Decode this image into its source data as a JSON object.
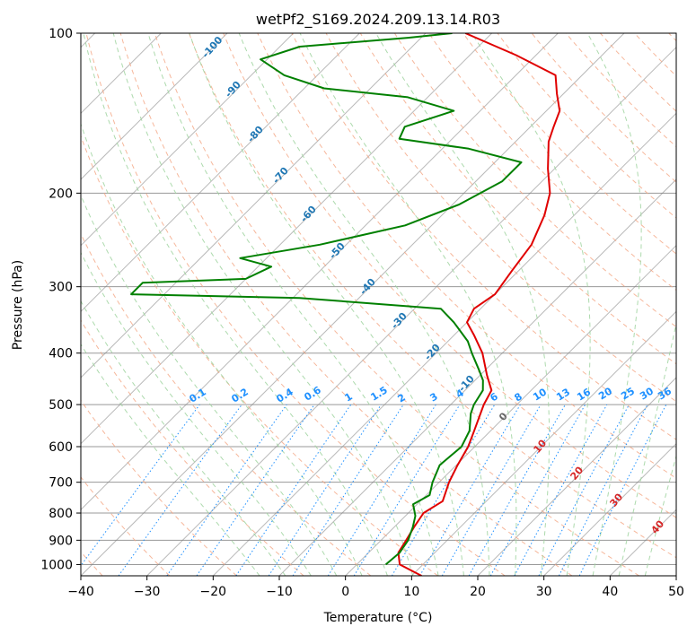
{
  "chart_data": {
    "type": "line",
    "title": "wetPf2_S169.2024.209.13.14.R03",
    "xlabel": "Temperature (°C)",
    "ylabel": "Pressure (hPa)",
    "xlim": [
      -40,
      50
    ],
    "ylim": [
      1050,
      100
    ],
    "y_scale": "log",
    "skew": true,
    "grid": true,
    "x_ticks": [
      -40,
      -30,
      -20,
      -10,
      0,
      10,
      20,
      30,
      40,
      50
    ],
    "y_ticks": [
      100,
      200,
      300,
      400,
      500,
      600,
      700,
      800,
      900,
      1000
    ],
    "series": [
      {
        "color": "#e00000",
        "points": [
          [
            1050,
            11.5
          ],
          [
            1000,
            6.5
          ],
          [
            950,
            4.5
          ],
          [
            900,
            3.8
          ],
          [
            850,
            3.0
          ],
          [
            800,
            2.3
          ],
          [
            760,
            3.4
          ],
          [
            700,
            1.5
          ],
          [
            650,
            0.2
          ],
          [
            600,
            -1.0
          ],
          [
            560,
            -2.5
          ],
          [
            500,
            -5.0
          ],
          [
            470,
            -6.0
          ],
          [
            440,
            -9.0
          ],
          [
            400,
            -13.0
          ],
          [
            370,
            -17.0
          ],
          [
            350,
            -20.0
          ],
          [
            330,
            -21.0
          ],
          [
            310,
            -20.0
          ],
          [
            280,
            -21.0
          ],
          [
            250,
            -22.0
          ],
          [
            220,
            -24.5
          ],
          [
            200,
            -27.0
          ],
          [
            180,
            -31.0
          ],
          [
            160,
            -35.0
          ],
          [
            150,
            -36.5
          ],
          [
            140,
            -38.0
          ],
          [
            130,
            -41.0
          ],
          [
            120,
            -44.0
          ],
          [
            110,
            -53.0
          ],
          [
            100,
            -64.0
          ]
        ]
      },
      {
        "color": "#008000",
        "points": [
          [
            1000,
            4.4
          ],
          [
            950,
            4.7
          ],
          [
            900,
            4.1
          ],
          [
            850,
            2.8
          ],
          [
            810,
            1.5
          ],
          [
            770,
            -0.6
          ],
          [
            740,
            0.5
          ],
          [
            700,
            -1.0
          ],
          [
            650,
            -2.5
          ],
          [
            600,
            -2.0
          ],
          [
            560,
            -3.2
          ],
          [
            520,
            -5.6
          ],
          [
            500,
            -6.5
          ],
          [
            470,
            -7.3
          ],
          [
            450,
            -8.8
          ],
          [
            430,
            -11.0
          ],
          [
            400,
            -14.6
          ],
          [
            380,
            -17.0
          ],
          [
            350,
            -22.0
          ],
          [
            330,
            -26.0
          ],
          [
            315,
            -49.0
          ],
          [
            310,
            -75.0
          ],
          [
            295,
            -75.0
          ],
          [
            290,
            -60.0
          ],
          [
            275,
            -58.0
          ],
          [
            265,
            -64.0
          ],
          [
            250,
            -54.0
          ],
          [
            230,
            -44.0
          ],
          [
            210,
            -39.0
          ],
          [
            190,
            -36.0
          ],
          [
            175,
            -36.0
          ],
          [
            165,
            -46.0
          ],
          [
            158,
            -58.0
          ],
          [
            150,
            -59.0
          ],
          [
            140,
            -54.0
          ],
          [
            132,
            -63.0
          ],
          [
            127,
            -77.0
          ],
          [
            120,
            -85.0
          ],
          [
            112,
            -91.0
          ],
          [
            106,
            -87.0
          ],
          [
            102,
            -72.0
          ],
          [
            100,
            -66.0
          ]
        ]
      }
    ],
    "dry_adiabat_labels": [
      "10",
      "20",
      "30",
      "40"
    ],
    "moist_adiabat_labels": [
      "-100",
      "-90",
      "-80",
      "-70",
      "-60",
      "-50",
      "-40",
      "-30",
      "-20",
      "-10",
      "0"
    ],
    "mixing_ratio_labels": [
      "0.1",
      "0.2",
      "0.4",
      "0.6",
      "1",
      "1.5",
      "2",
      "3",
      "4",
      "6",
      "8",
      "10",
      "13",
      "16",
      "20",
      "25",
      "30",
      "36"
    ],
    "colors": {
      "dry_adiabat": "#f4a582",
      "moist_adiabat": "#9fd49f",
      "mixing_ratio": "#1e90ff",
      "isotherm": "#7f7f7f",
      "isobar": "#999999",
      "temperature": "#e00000",
      "dewpoint": "#008000"
    }
  }
}
